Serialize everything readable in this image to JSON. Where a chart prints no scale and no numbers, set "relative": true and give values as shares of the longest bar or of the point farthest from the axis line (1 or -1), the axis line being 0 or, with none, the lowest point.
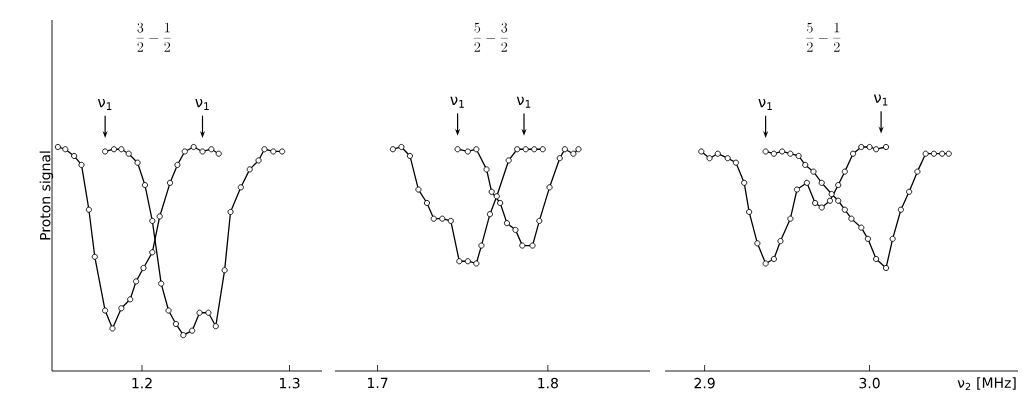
{
  "chart_data": [
    {
      "type": "line",
      "relative": true,
      "marker": "circle",
      "tick_labels": "x",
      "title": "\\frac{3}{2}-\\frac{1}{2}",
      "ylabel": "Proton signal",
      "xlim": [
        1.139,
        1.322
      ],
      "xticks": [
        1.2,
        1.3
      ],
      "annotations": [
        {
          "text": "ν$_{1}$",
          "x": 1.175,
          "y": 0.98
        },
        {
          "text": "ν$_{1}$",
          "x": 1.241,
          "y": 0.98
        }
      ],
      "series": [
        {
          "color": "#000000",
          "x": [
            1.143,
            1.148,
            1.154,
            1.159,
            1.164,
            1.168,
            1.175,
            1.18,
            1.186,
            1.192,
            1.196,
            1.201,
            1.207,
            1.212,
            1.219,
            1.224,
            1.229,
            1.235,
            1.241,
            1.247,
            1.252
          ],
          "values": [
            1.0,
            0.99,
            0.96,
            0.92,
            0.72,
            0.51,
            0.27,
            0.19,
            0.28,
            0.32,
            0.4,
            0.46,
            0.53,
            0.69,
            0.84,
            0.92,
            0.98,
            1.0,
            0.98,
            0.99,
            0.97
          ]
        },
        {
          "color": "#000000",
          "x": [
            1.175,
            1.181,
            1.186,
            1.191,
            1.197,
            1.202,
            1.207,
            1.213,
            1.218,
            1.223,
            1.228,
            1.234,
            1.239,
            1.245,
            1.25,
            1.256,
            1.26,
            1.267,
            1.273,
            1.279,
            1.283,
            1.289,
            1.295
          ],
          "values": [
            0.98,
            0.99,
            0.99,
            0.97,
            0.93,
            0.83,
            0.67,
            0.39,
            0.27,
            0.21,
            0.16,
            0.18,
            0.26,
            0.26,
            0.2,
            0.45,
            0.71,
            0.82,
            0.9,
            0.94,
            0.99,
            0.98,
            0.98
          ]
        }
      ]
    },
    {
      "type": "line",
      "relative": true,
      "marker": "circle",
      "tick_labels": "x",
      "title": "\\frac{5}{2}-\\frac{3}{2}",
      "xlim": [
        1.675,
        1.86
      ],
      "xticks": [
        1.7,
        1.8
      ],
      "annotations": [
        {
          "text": "ν$_{1}$",
          "x": 1.747,
          "y": 0.99
        },
        {
          "text": "ν$_{1}$",
          "x": 1.786,
          "y": 0.99
        }
      ],
      "series": [
        {
          "color": "#000000",
          "x": [
            1.709,
            1.714,
            1.719,
            1.724,
            1.729,
            1.733,
            1.738,
            1.743,
            1.748,
            1.753,
            1.758,
            1.761,
            1.766,
            1.77,
            1.777,
            1.782,
            1.787,
            1.792,
            1.797
          ],
          "values": [
            0.99,
            1.0,
            0.96,
            0.81,
            0.75,
            0.68,
            0.68,
            0.67,
            0.49,
            0.49,
            0.48,
            0.56,
            0.7,
            0.78,
            0.94,
            0.99,
            0.99,
            0.99,
            0.99
          ]
        },
        {
          "color": "#000000",
          "x": [
            1.747,
            1.753,
            1.758,
            1.764,
            1.767,
            1.772,
            1.776,
            1.781,
            1.785,
            1.791,
            1.795,
            1.801,
            1.807,
            1.81,
            1.815,
            1.818
          ],
          "values": [
            0.99,
            0.98,
            0.99,
            0.9,
            0.8,
            0.75,
            0.66,
            0.63,
            0.56,
            0.56,
            0.67,
            0.82,
            0.95,
            0.99,
            0.97,
            0.99
          ]
        }
      ]
    },
    {
      "type": "line",
      "relative": true,
      "marker": "circle",
      "tick_labels": "x",
      "title": "\\frac{5}{2}-\\frac{1}{2}",
      "xlabel": "ν$_{2}$ [MHz]",
      "xlim": [
        2.876,
        3.09
      ],
      "xticks": [
        2.9,
        {
          "value": 3,
          "label": "3.0"
        }
      ],
      "annotations": [
        {
          "text": "ν$_{1}$",
          "x": 2.937,
          "y": 0.98
        },
        {
          "text": "ν$_{1}$",
          "x": 3.007,
          "y": 1.0
        }
      ],
      "series": [
        {
          "color": "#000000",
          "x": [
            2.898,
            2.903,
            2.908,
            2.914,
            2.919,
            2.924,
            2.927,
            2.932,
            2.937,
            2.942,
            2.946,
            2.952,
            2.956,
            2.962,
            2.967,
            2.971,
            2.976,
            2.981,
            2.985,
            2.99,
            2.995,
            3.0,
            3.004,
            3.01
          ],
          "values": [
            0.98,
            0.95,
            0.97,
            0.95,
            0.93,
            0.84,
            0.71,
            0.57,
            0.48,
            0.5,
            0.58,
            0.68,
            0.81,
            0.84,
            0.75,
            0.73,
            0.76,
            0.83,
            0.89,
            0.97,
            1.0,
            1.0,
            0.99,
            1.0
          ]
        },
        {
          "color": "#000000",
          "x": [
            2.937,
            2.942,
            2.947,
            2.952,
            2.957,
            2.961,
            2.966,
            2.971,
            2.977,
            2.981,
            2.985,
            2.989,
            2.995,
            2.999,
            3.004,
            3.01,
            3.014,
            3.019,
            3.024,
            3.029,
            3.034,
            3.039,
            3.044,
            3.048
          ],
          "values": [
            0.98,
            0.97,
            0.98,
            0.97,
            0.96,
            0.92,
            0.89,
            0.84,
            0.79,
            0.76,
            0.72,
            0.68,
            0.64,
            0.59,
            0.5,
            0.46,
            0.59,
            0.72,
            0.8,
            0.89,
            0.97,
            0.97,
            0.97,
            0.97
          ]
        }
      ]
    }
  ]
}
